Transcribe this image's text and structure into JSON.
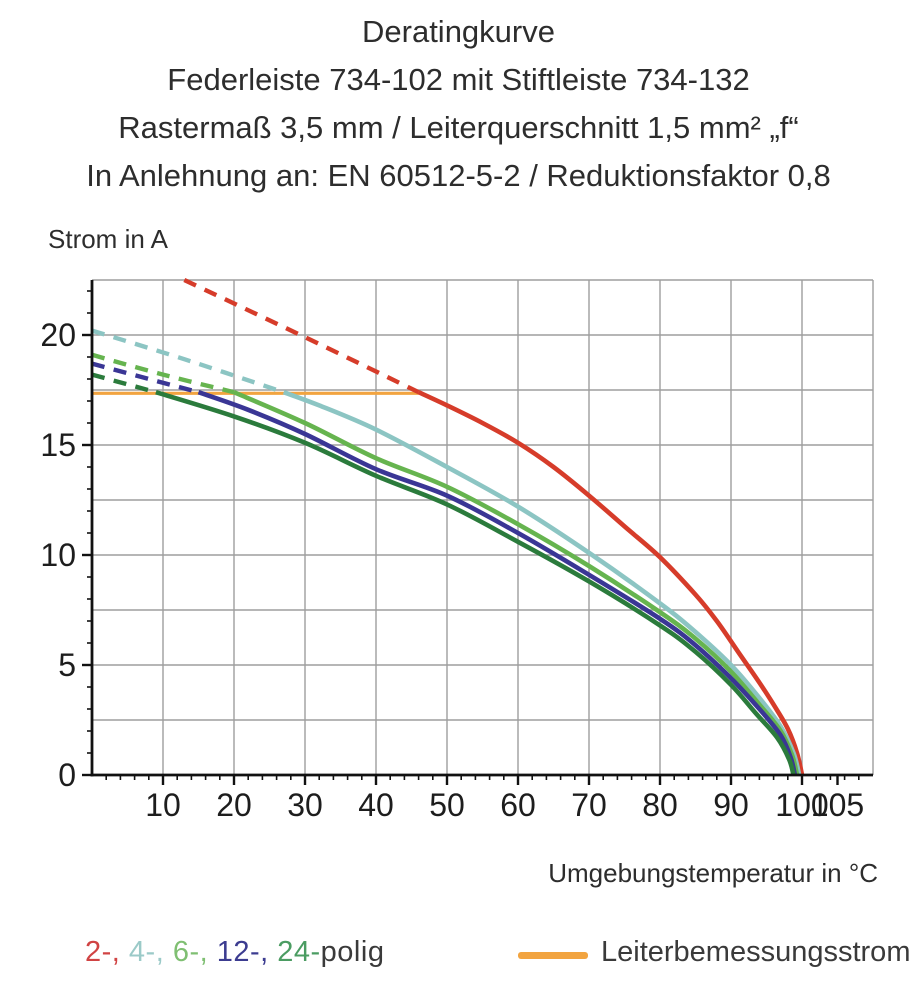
{
  "header": {
    "lines": [
      "Deratingkurve",
      "Federleiste 734-102 mit Stiftleiste 734-132",
      "Rastermaß 3,5 mm / Leiterquerschnitt 1,5 mm² „f“",
      "In Anlehnung an: EN 60512-5-2 / Reduktionsfaktor 0,8"
    ]
  },
  "chart": {
    "y_axis_label": "Strom in A",
    "x_axis_label": "Umgebungstemperatur in °C"
  },
  "legend": {
    "poles": [
      {
        "text": "2-, ",
        "color": "#d04343"
      },
      {
        "text": "4-, ",
        "color": "#9bcac8"
      },
      {
        "text": "6-, ",
        "color": "#7fbf72"
      },
      {
        "text": "12-, ",
        "color": "#3c3c90"
      },
      {
        "text": "24-",
        "color": "#4b9c62"
      },
      {
        "text": "polig",
        "color": "#3a3a3a"
      }
    ],
    "rated_label": "Leiterbemessungsstrom",
    "rated_color": "#f2a440"
  },
  "chart_data": {
    "type": "line",
    "title": "Deratingkurve",
    "xlabel": "Umgebungstemperatur in °C",
    "ylabel": "Strom in A",
    "xlim": [
      0,
      110
    ],
    "ylim": [
      0,
      22.5
    ],
    "grid": true,
    "x_gridline_step": 10,
    "y_gridline_step": 2.5,
    "x_minor_tick_step": 2,
    "y_minor_tick_step": 1,
    "x_ticks_labeled": [
      10,
      20,
      30,
      40,
      50,
      60,
      70,
      80,
      90,
      100,
      105
    ],
    "y_ticks_labeled": [
      0,
      5,
      10,
      15,
      20
    ],
    "legend_position": "bottom",
    "rated_current_line": {
      "label": "Leiterbemessungsstrom",
      "value_a": 17.35,
      "x_start_c": 0,
      "x_end_c": 46,
      "color": "#f2a440"
    },
    "series": [
      {
        "name": "2-polig",
        "poles": 2,
        "color": "#d63c2a",
        "dashed_extrapolation_points_c_a": [
          [
            13,
            22.5
          ],
          [
            30,
            19.9
          ],
          [
            46,
            17.4
          ]
        ],
        "solid_points_c_a": [
          [
            46,
            17.4
          ],
          [
            50,
            16.8
          ],
          [
            55,
            16.0
          ],
          [
            60,
            15.1
          ],
          [
            65,
            14.0
          ],
          [
            70,
            12.7
          ],
          [
            75,
            11.3
          ],
          [
            80,
            9.9
          ],
          [
            85,
            8.2
          ],
          [
            88,
            7.0
          ],
          [
            91,
            5.6
          ],
          [
            94,
            4.2
          ],
          [
            96,
            3.2
          ],
          [
            98,
            2.1
          ],
          [
            99.3,
            1.0
          ],
          [
            100,
            0.0
          ]
        ]
      },
      {
        "name": "4-polig",
        "poles": 4,
        "color": "#8cc5c3",
        "dashed_extrapolation_points_c_a": [
          [
            0,
            20.2
          ],
          [
            13,
            18.9
          ],
          [
            27,
            17.4
          ]
        ],
        "solid_points_c_a": [
          [
            27,
            17.4
          ],
          [
            32,
            16.8
          ],
          [
            40,
            15.7
          ],
          [
            50,
            14.0
          ],
          [
            60,
            12.2
          ],
          [
            70,
            10.1
          ],
          [
            80,
            7.8
          ],
          [
            85,
            6.5
          ],
          [
            90,
            5.0
          ],
          [
            94,
            3.5
          ],
          [
            97,
            2.2
          ],
          [
            98.8,
            1.0
          ],
          [
            99.6,
            0.0
          ]
        ]
      },
      {
        "name": "6-polig",
        "poles": 6,
        "color": "#66b44f",
        "dashed_extrapolation_points_c_a": [
          [
            0,
            19.1
          ],
          [
            10,
            18.2
          ],
          [
            20,
            17.4
          ]
        ],
        "solid_points_c_a": [
          [
            20,
            17.4
          ],
          [
            30,
            16.0
          ],
          [
            40,
            14.4
          ],
          [
            50,
            13.1
          ],
          [
            60,
            11.4
          ],
          [
            70,
            9.5
          ],
          [
            80,
            7.4
          ],
          [
            85,
            6.2
          ],
          [
            90,
            4.7
          ],
          [
            94,
            3.2
          ],
          [
            97,
            2.0
          ],
          [
            98.6,
            0.9
          ],
          [
            99.3,
            0.0
          ]
        ]
      },
      {
        "name": "12-polig",
        "poles": 12,
        "color": "#3a3695",
        "dashed_extrapolation_points_c_a": [
          [
            0,
            18.7
          ],
          [
            8,
            18.0
          ],
          [
            15,
            17.4
          ]
        ],
        "solid_points_c_a": [
          [
            15,
            17.4
          ],
          [
            22,
            16.6
          ],
          [
            30,
            15.5
          ],
          [
            40,
            13.9
          ],
          [
            50,
            12.7
          ],
          [
            60,
            11.0
          ],
          [
            70,
            9.1
          ],
          [
            80,
            7.1
          ],
          [
            85,
            5.9
          ],
          [
            90,
            4.4
          ],
          [
            94,
            3.0
          ],
          [
            97,
            1.8
          ],
          [
            98.4,
            0.8
          ],
          [
            99,
            0.0
          ]
        ]
      },
      {
        "name": "24-polig",
        "poles": 24,
        "color": "#2b7b3c",
        "dashed_extrapolation_points_c_a": [
          [
            0,
            18.2
          ],
          [
            9,
            17.4
          ]
        ],
        "solid_points_c_a": [
          [
            9,
            17.4
          ],
          [
            20,
            16.3
          ],
          [
            30,
            15.1
          ],
          [
            40,
            13.6
          ],
          [
            50,
            12.3
          ],
          [
            60,
            10.6
          ],
          [
            70,
            8.8
          ],
          [
            80,
            6.8
          ],
          [
            85,
            5.6
          ],
          [
            90,
            4.1
          ],
          [
            93.5,
            2.8
          ],
          [
            96.5,
            1.7
          ],
          [
            98.2,
            0.7
          ],
          [
            98.8,
            0.0
          ]
        ]
      }
    ]
  }
}
